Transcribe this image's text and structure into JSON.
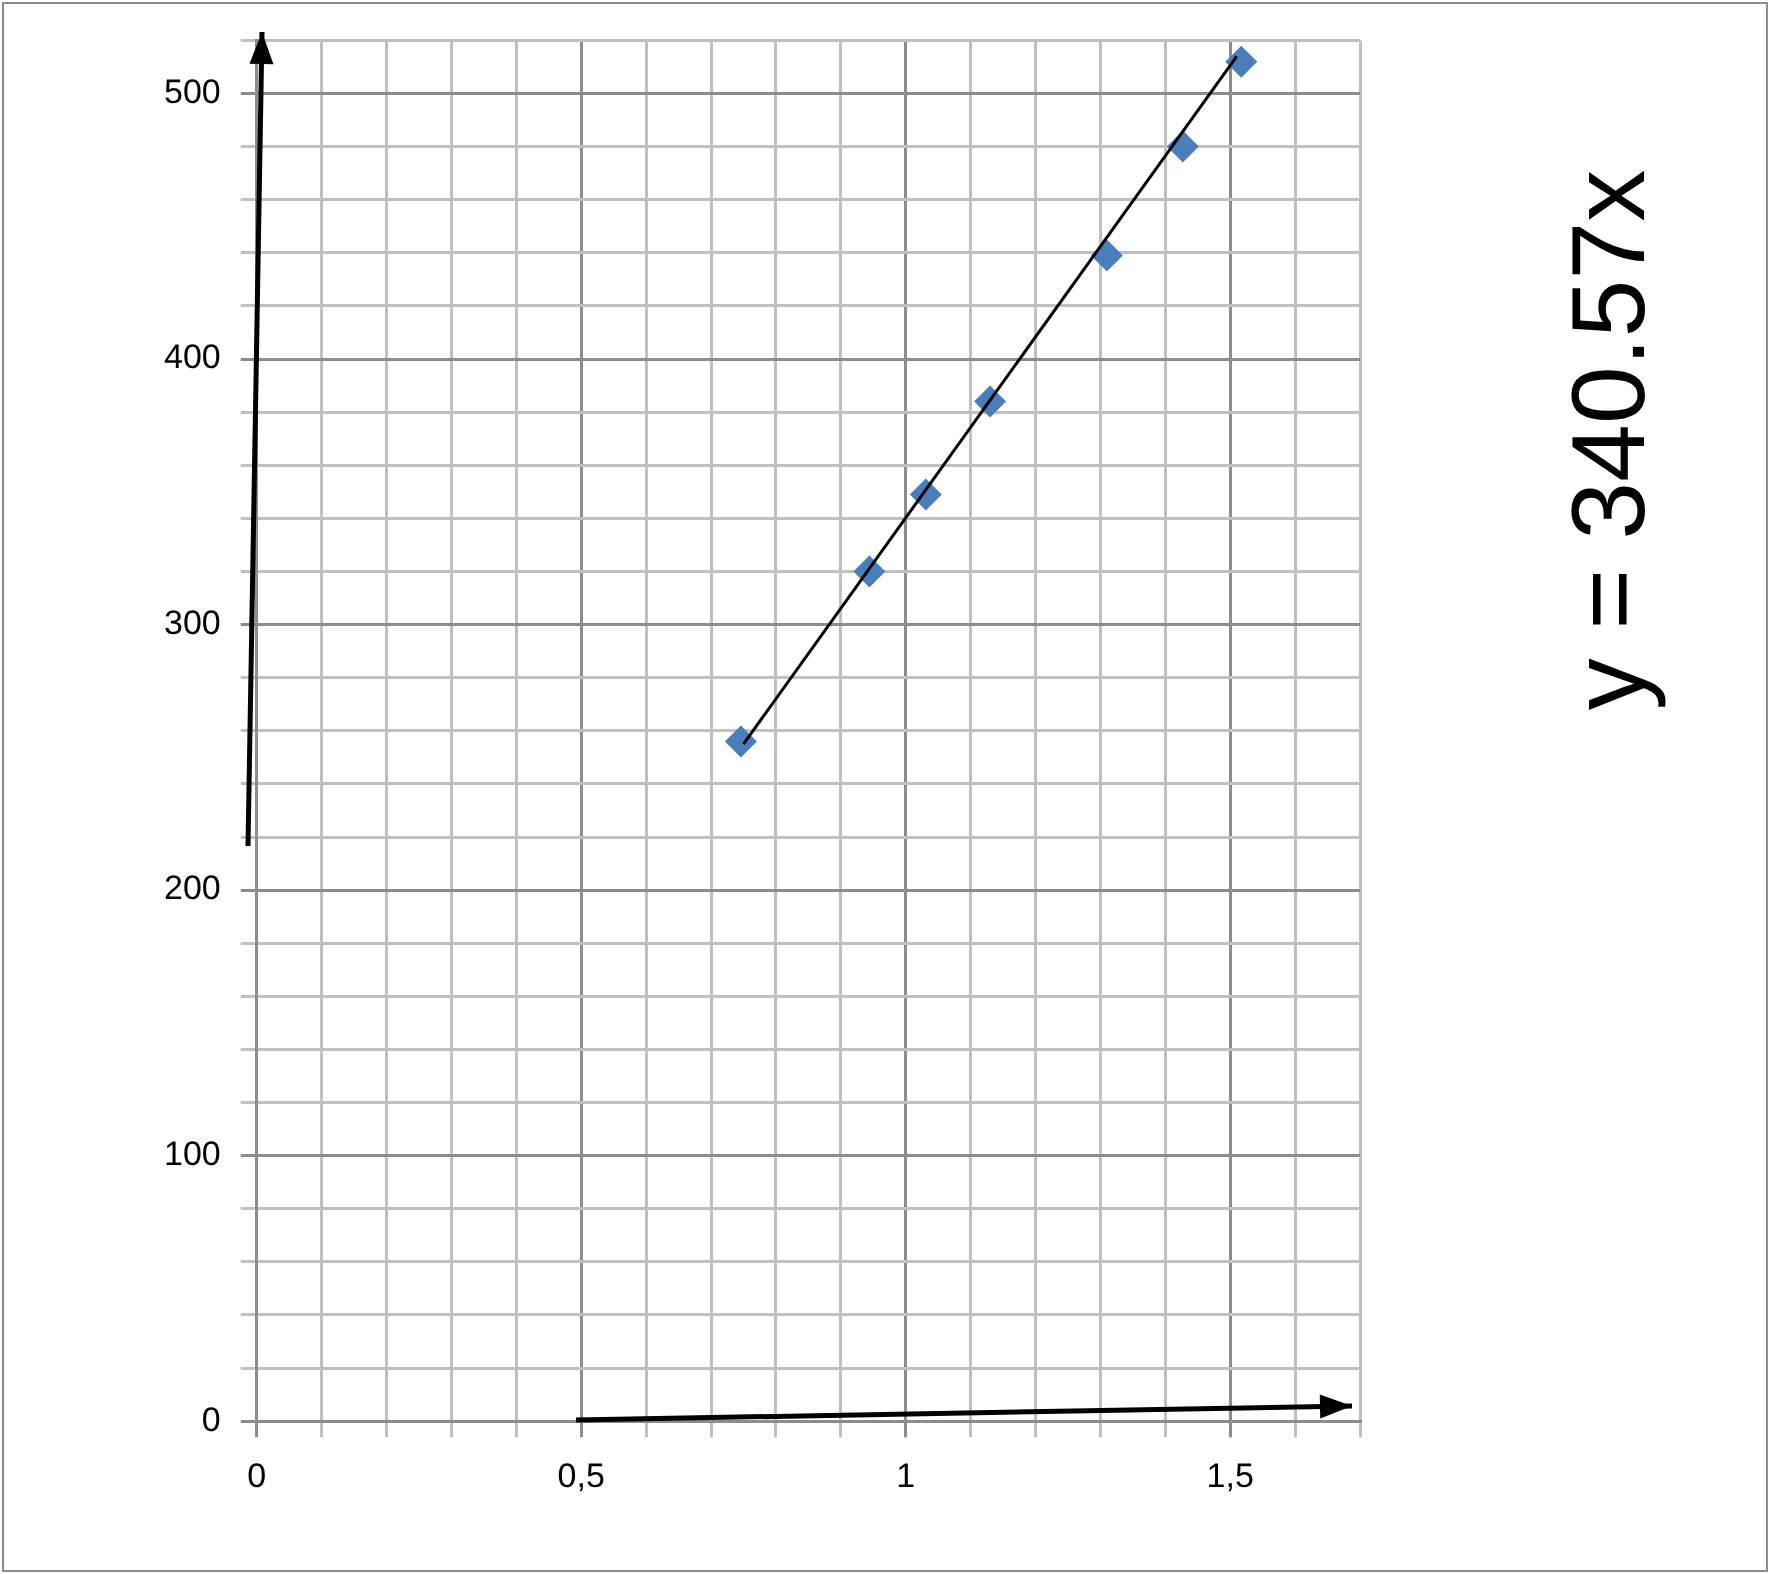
{
  "chart_data": {
    "type": "scatter",
    "grid": true,
    "legend": false,
    "xlim": [
      0,
      1.7
    ],
    "ylim": [
      0,
      520
    ],
    "xticks": [
      0,
      {
        "value": 0.1,
        "label": null
      },
      {
        "value": 0.2,
        "label": null
      },
      {
        "value": 0.3,
        "label": null
      },
      {
        "value": 0.4,
        "label": null
      },
      {
        "value": 0.5,
        "label": "0,5"
      },
      {
        "value": 0.6,
        "label": null
      },
      {
        "value": 0.7,
        "label": null
      },
      {
        "value": 0.8,
        "label": null
      },
      {
        "value": 0.9,
        "label": null
      },
      1,
      {
        "value": 1.1,
        "label": null
      },
      {
        "value": 1.2,
        "label": null
      },
      {
        "value": 1.3,
        "label": null
      },
      {
        "value": 1.4,
        "label": null
      },
      {
        "value": 1.5,
        "label": "1,5"
      },
      {
        "value": 1.6,
        "label": null
      },
      {
        "value": 1.7,
        "label": null
      }
    ],
    "yticks": [
      0,
      {
        "value": 20,
        "label": null
      },
      {
        "value": 40,
        "label": null
      },
      {
        "value": 60,
        "label": null
      },
      {
        "value": 80,
        "label": null
      },
      100,
      {
        "value": 120,
        "label": null
      },
      {
        "value": 140,
        "label": null
      },
      {
        "value": 160,
        "label": null
      },
      {
        "value": 180,
        "label": null
      },
      200,
      {
        "value": 220,
        "label": null
      },
      {
        "value": 240,
        "label": null
      },
      {
        "value": 260,
        "label": null
      },
      {
        "value": 280,
        "label": null
      },
      300,
      {
        "value": 320,
        "label": null
      },
      {
        "value": 340,
        "label": null
      },
      {
        "value": 360,
        "label": null
      },
      {
        "value": 380,
        "label": null
      },
      400,
      {
        "value": 420,
        "label": null
      },
      {
        "value": 440,
        "label": null
      },
      {
        "value": 460,
        "label": null
      },
      {
        "value": 480,
        "label": null
      },
      500,
      {
        "value": 520,
        "label": null
      }
    ],
    "series": [
      {
        "color": "#4a7ebb",
        "marker": "diamond",
        "x": [
          0.746,
          0.944,
          1.031,
          1.13,
          1.31,
          1.427,
          1.517
        ],
        "values": [
          256,
          320,
          349,
          384,
          439,
          480,
          512
        ]
      },
      {
        "type": "line",
        "color": "#000000",
        "marker": "none",
        "x": [
          0.75,
          1.51
        ],
        "values": [
          255,
          514
        ]
      }
    ],
    "annotations": [
      "y = 340.57x"
    ]
  }
}
